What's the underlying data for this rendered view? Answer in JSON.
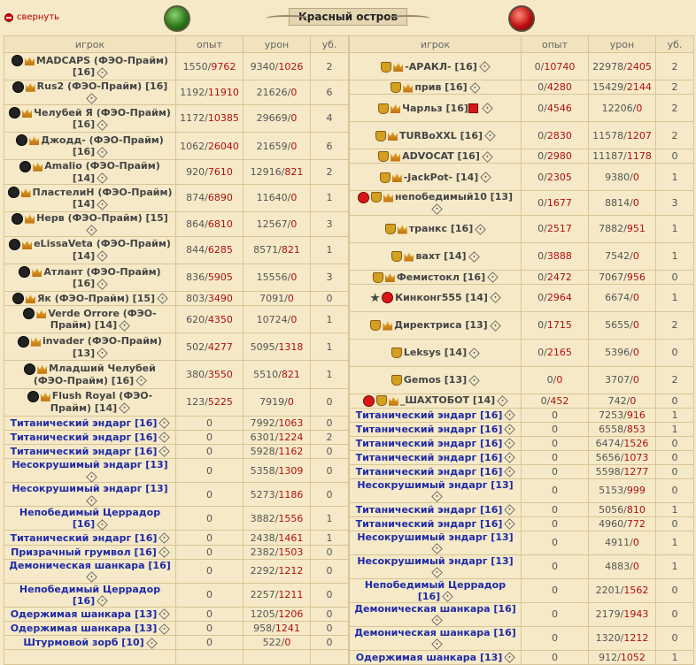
{
  "collapse_label": "свернуть",
  "title": "Красный остров",
  "headers": {
    "player": "игрок",
    "exp": "опыт",
    "dmg": "урон",
    "kills": "уб."
  },
  "left": [
    {
      "icons": [
        "circle",
        "crown"
      ],
      "name": "MADCAPS (ФЭО-Прайм) [16]",
      "tall": true,
      "exp_a": "1550",
      "exp_b": "9762",
      "dmg_a": "9340",
      "dmg_b": "1026",
      "k": "2"
    },
    {
      "icons": [
        "circle",
        "crown"
      ],
      "name": "Rus2 (ФЭО-Прайм) [16]",
      "tall": false,
      "exp_a": "1192",
      "exp_b": "11910",
      "dmg_a": "21626",
      "dmg_b": "0",
      "k": "6"
    },
    {
      "icons": [
        "circle",
        "crown"
      ],
      "name": "Челубей Я (ФЭО-Прайм) [16]",
      "tall": true,
      "exp_a": "1172",
      "exp_b": "10385",
      "dmg_a": "29669",
      "dmg_b": "0",
      "k": "4"
    },
    {
      "icons": [
        "circle",
        "crown"
      ],
      "name": "Джодд- (ФЭО-Прайм) [16]",
      "tall": true,
      "exp_a": "1062",
      "exp_b": "26040",
      "dmg_a": "21659",
      "dmg_b": "0",
      "k": "6"
    },
    {
      "icons": [
        "circle",
        "crown"
      ],
      "name": "Amalio (ФЭО-Прайм) [14]",
      "tall": false,
      "exp_a": "920",
      "exp_b": "7610",
      "dmg_a": "12916",
      "dmg_b": "821",
      "k": "2"
    },
    {
      "icons": [
        "circle",
        "crown"
      ],
      "name": "ПластелиН (ФЭО-Прайм) [14]",
      "tall": true,
      "exp_a": "874",
      "exp_b": "6890",
      "dmg_a": "11640",
      "dmg_b": "0",
      "k": "1"
    },
    {
      "icons": [
        "circle",
        "crown"
      ],
      "name": "Нерв (ФЭО-Прайм) [15]",
      "tall": false,
      "exp_a": "864",
      "exp_b": "6810",
      "dmg_a": "12567",
      "dmg_b": "0",
      "k": "3"
    },
    {
      "icons": [
        "circle",
        "crown"
      ],
      "name": "eLissaVeta (ФЭО-Прайм) [14]",
      "tall": true,
      "exp_a": "844",
      "exp_b": "6285",
      "dmg_a": "8571",
      "dmg_b": "821",
      "k": "1"
    },
    {
      "icons": [
        "circle",
        "crown"
      ],
      "name": "Атлант (ФЭО-Прайм) [16]",
      "tall": true,
      "exp_a": "836",
      "exp_b": "5905",
      "dmg_a": "15556",
      "dmg_b": "0",
      "k": "3"
    },
    {
      "icons": [
        "circle",
        "crown"
      ],
      "name": "Як (ФЭО-Прайм) [15]",
      "tall": false,
      "exp_a": "803",
      "exp_b": "3490",
      "dmg_a": "7091",
      "dmg_b": "0",
      "k": "0"
    },
    {
      "icons": [
        "circle",
        "crown"
      ],
      "name": "Verde Orrore (ФЭО-Прайм) [14]",
      "tall": true,
      "exp_a": "620",
      "exp_b": "4350",
      "dmg_a": "10724",
      "dmg_b": "0",
      "k": "1"
    },
    {
      "icons": [
        "circle",
        "crown"
      ],
      "name": "invader (ФЭО-Прайм) [13]",
      "tall": true,
      "exp_a": "502",
      "exp_b": "4277",
      "dmg_a": "5095",
      "dmg_b": "1318",
      "k": "1"
    },
    {
      "icons": [
        "circle",
        "crown"
      ],
      "name": "Младший Челубей (ФЭО-Прайм) [16]",
      "tall": true,
      "exp_a": "380",
      "exp_b": "3550",
      "dmg_a": "5510",
      "dmg_b": "821",
      "k": "1"
    },
    {
      "icons": [
        "circle",
        "crown"
      ],
      "name": "Flush Royal (ФЭО-Прайм) [14]",
      "tall": true,
      "exp_a": "123",
      "exp_b": "5225",
      "dmg_a": "7919",
      "dmg_b": "0",
      "k": "0"
    },
    {
      "mob": true,
      "name": "Титанический эндарг [16]",
      "exp": "0",
      "dmg_a": "7992",
      "dmg_b": "1063",
      "k": "0"
    },
    {
      "mob": true,
      "name": "Титанический эндарг [16]",
      "exp": "0",
      "dmg_a": "6301",
      "dmg_b": "1224",
      "k": "2"
    },
    {
      "mob": true,
      "name": "Титанический эндарг [16]",
      "exp": "0",
      "dmg_a": "5928",
      "dmg_b": "1162",
      "k": "0"
    },
    {
      "mob": true,
      "name": "Несокрушимый эндарг [13]",
      "exp": "0",
      "dmg_a": "5358",
      "dmg_b": "1309",
      "k": "0"
    },
    {
      "mob": true,
      "name": "Несокрушимый эндарг [13]",
      "exp": "0",
      "dmg_a": "5273",
      "dmg_b": "1186",
      "k": "0"
    },
    {
      "mob": true,
      "name": "Непобедимый Церрадор [16]",
      "exp": "0",
      "dmg_a": "3882",
      "dmg_b": "1556",
      "k": "1"
    },
    {
      "mob": true,
      "name": "Титанический эндарг [16]",
      "exp": "0",
      "dmg_a": "2438",
      "dmg_b": "1461",
      "k": "1"
    },
    {
      "mob": true,
      "name": "Призрачный грумвол [16]",
      "exp": "0",
      "dmg_a": "2382",
      "dmg_b": "1503",
      "k": "0"
    },
    {
      "mob": true,
      "name": "Демоническая шанкара [16]",
      "exp": "0",
      "dmg_a": "2292",
      "dmg_b": "1212",
      "k": "0"
    },
    {
      "mob": true,
      "name": "Непобедимый Церрадор [16]",
      "exp": "0",
      "dmg_a": "2257",
      "dmg_b": "1211",
      "k": "0"
    },
    {
      "mob": true,
      "name": "Одержимая шанкара [13]",
      "exp": "0",
      "dmg_a": "1205",
      "dmg_b": "1206",
      "k": "0"
    },
    {
      "mob": true,
      "name": "Одержимая шанкара [13]",
      "exp": "0",
      "dmg_a": "958",
      "dmg_b": "1241",
      "k": "0"
    },
    {
      "mob": true,
      "name": "Штурмовой зорб [10]",
      "exp": "0",
      "dmg_a": "522",
      "dmg_b": "0",
      "k": "0"
    },
    {
      "empty": true
    }
  ],
  "right": [
    {
      "icons": [
        "cup",
        "crown"
      ],
      "name": "-АРАКЛ- [16]",
      "tall": true,
      "exp_a": "0",
      "exp_b": "10740",
      "dmg_a": "22978",
      "dmg_b": "2405",
      "k": "2"
    },
    {
      "icons": [
        "cup",
        "crown"
      ],
      "name": "прив [16]",
      "tall": false,
      "exp_a": "0",
      "exp_b": "4280",
      "dmg_a": "15429",
      "dmg_b": "2144",
      "k": "2"
    },
    {
      "icons": [
        "cup",
        "crown"
      ],
      "name": "Чарльз [16]",
      "extra": "plus",
      "tall": true,
      "exp_a": "0",
      "exp_b": "4546",
      "dmg_a": "12206",
      "dmg_b": "0",
      "k": "2"
    },
    {
      "icons": [
        "cup",
        "crown"
      ],
      "name": "TURBoXXL [16]",
      "tall": true,
      "exp_a": "0",
      "exp_b": "2830",
      "dmg_a": "11578",
      "dmg_b": "1207",
      "k": "2"
    },
    {
      "icons": [
        "cup",
        "crown"
      ],
      "name": "ADVOCAT [16]",
      "tall": false,
      "exp_a": "0",
      "exp_b": "2980",
      "dmg_a": "11187",
      "dmg_b": "1178",
      "k": "0"
    },
    {
      "icons": [
        "cup",
        "crown"
      ],
      "name": "-JackPot- [14]",
      "tall": true,
      "exp_a": "0",
      "exp_b": "2305",
      "dmg_a": "9380",
      "dmg_b": "0",
      "k": "1"
    },
    {
      "icons": [
        "red",
        "cup",
        "crown"
      ],
      "name": "непобедимый10 [13]",
      "tall": false,
      "exp_a": "0",
      "exp_b": "1677",
      "dmg_a": "8814",
      "dmg_b": "0",
      "k": "3"
    },
    {
      "icons": [
        "cup",
        "crown"
      ],
      "name": "транкс [16]",
      "tall": true,
      "exp_a": "0",
      "exp_b": "2517",
      "dmg_a": "7882",
      "dmg_b": "951",
      "k": "1"
    },
    {
      "icons": [
        "cup",
        "crown"
      ],
      "name": "вахт [14]",
      "tall": true,
      "exp_a": "0",
      "exp_b": "3888",
      "dmg_a": "7542",
      "dmg_b": "0",
      "k": "1"
    },
    {
      "icons": [
        "cup",
        "crown"
      ],
      "name": "Фемистокл [16]",
      "tall": false,
      "exp_a": "0",
      "exp_b": "2472",
      "dmg_a": "7067",
      "dmg_b": "956",
      "k": "0"
    },
    {
      "icons": [
        "star",
        "red"
      ],
      "name": "Кинконг555 [14]",
      "tall": true,
      "exp_a": "0",
      "exp_b": "2964",
      "dmg_a": "6674",
      "dmg_b": "0",
      "k": "1"
    },
    {
      "icons": [
        "cup",
        "crown"
      ],
      "name": "Директриса [13]",
      "tall": true,
      "exp_a": "0",
      "exp_b": "1715",
      "dmg_a": "5655",
      "dmg_b": "0",
      "k": "2"
    },
    {
      "icons": [
        "cup"
      ],
      "name": "Leksys [14]",
      "tall": true,
      "exp_a": "0",
      "exp_b": "2165",
      "dmg_a": "5396",
      "dmg_b": "0",
      "k": "0"
    },
    {
      "icons": [
        "cup"
      ],
      "name": "Gemos [13]",
      "tall": true,
      "exp_a": "0",
      "exp_b": "0",
      "dmg_a": "3707",
      "dmg_b": "0",
      "k": "2"
    },
    {
      "icons": [
        "red",
        "cup",
        "crown"
      ],
      "name": "_ШАХТОБОТ [14]",
      "tall": false,
      "exp_a": "0",
      "exp_b": "452",
      "dmg_a": "742",
      "dmg_b": "0",
      "k": "0"
    },
    {
      "mob": true,
      "name": "Титанический эндарг [16]",
      "exp": "0",
      "dmg_a": "7253",
      "dmg_b": "916",
      "k": "1"
    },
    {
      "mob": true,
      "name": "Титанический эндарг [16]",
      "exp": "0",
      "dmg_a": "6558",
      "dmg_b": "853",
      "k": "1"
    },
    {
      "mob": true,
      "name": "Титанический эндарг [16]",
      "exp": "0",
      "dmg_a": "6474",
      "dmg_b": "1526",
      "k": "0"
    },
    {
      "mob": true,
      "name": "Титанический эндарг [16]",
      "exp": "0",
      "dmg_a": "5656",
      "dmg_b": "1073",
      "k": "0"
    },
    {
      "mob": true,
      "name": "Титанический эндарг [16]",
      "exp": "0",
      "dmg_a": "5598",
      "dmg_b": "1277",
      "k": "0"
    },
    {
      "mob": true,
      "name": "Несокрушимый эндарг [13]",
      "exp": "0",
      "dmg_a": "5153",
      "dmg_b": "999",
      "k": "0"
    },
    {
      "mob": true,
      "name": "Титанический эндарг [16]",
      "exp": "0",
      "dmg_a": "5056",
      "dmg_b": "810",
      "k": "1"
    },
    {
      "mob": true,
      "name": "Титанический эндарг [16]",
      "exp": "0",
      "dmg_a": "4960",
      "dmg_b": "772",
      "k": "0"
    },
    {
      "mob": true,
      "name": "Несокрушимый эндарг [13]",
      "exp": "0",
      "dmg_a": "4911",
      "dmg_b": "0",
      "k": "1"
    },
    {
      "mob": true,
      "name": "Несокрушимый эндарг [13]",
      "exp": "0",
      "dmg_a": "4883",
      "dmg_b": "0",
      "k": "1"
    },
    {
      "mob": true,
      "name": "Непобедимый Церрадор [16]",
      "exp": "0",
      "dmg_a": "2201",
      "dmg_b": "1562",
      "k": "0"
    },
    {
      "mob": true,
      "name": "Демоническая шанкара [16]",
      "exp": "0",
      "dmg_a": "2179",
      "dmg_b": "1943",
      "k": "0"
    },
    {
      "mob": true,
      "name": "Демоническая шанкара [16]",
      "exp": "0",
      "dmg_a": "1320",
      "dmg_b": "1212",
      "k": "0"
    },
    {
      "mob": true,
      "name": "Одержимая шанкара [13]",
      "exp": "0",
      "dmg_a": "912",
      "dmg_b": "1052",
      "k": "1"
    }
  ]
}
